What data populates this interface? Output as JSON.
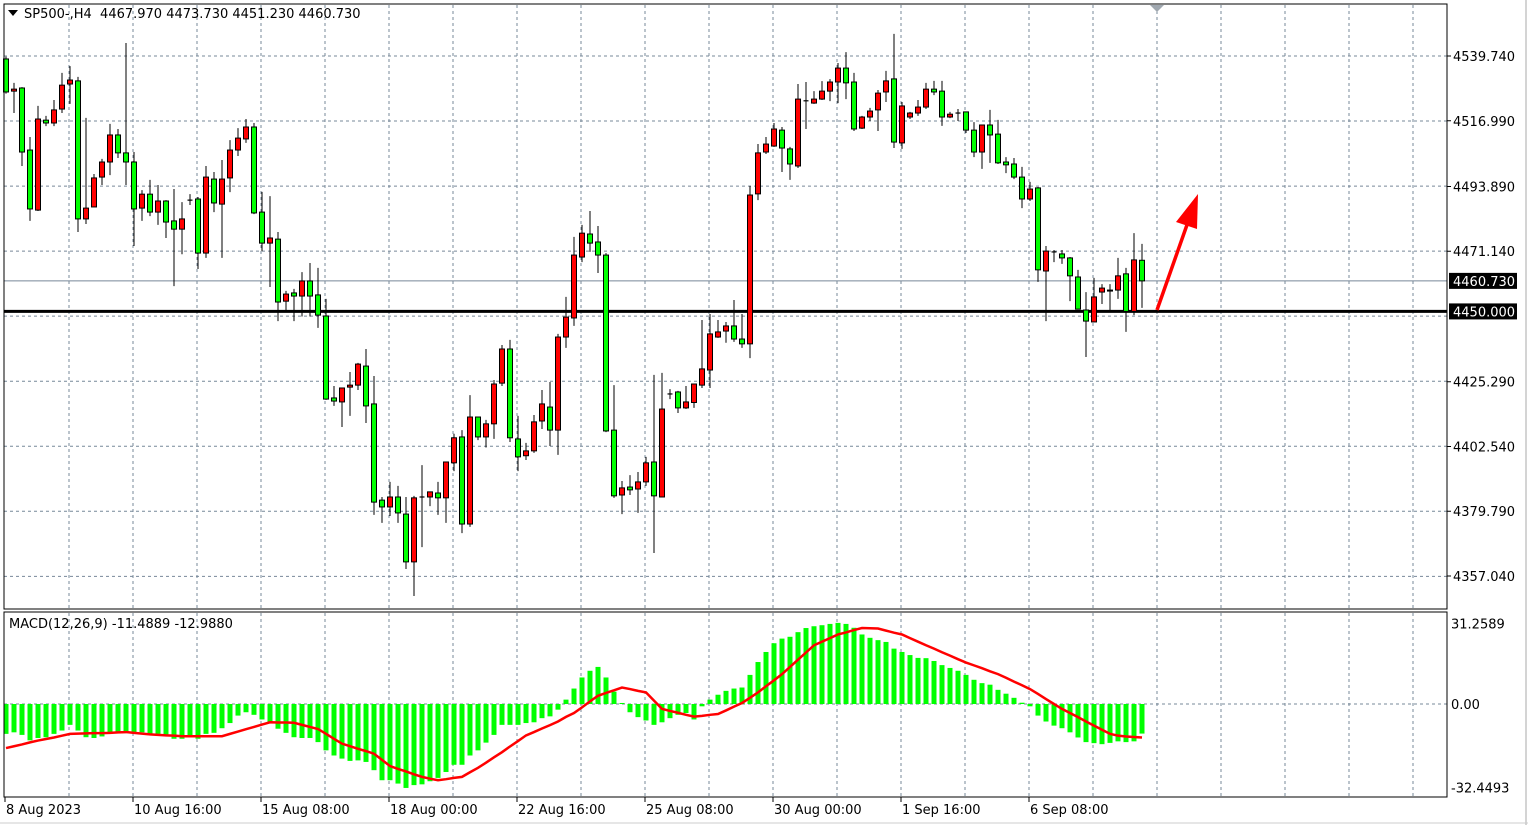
{
  "header": {
    "symbol": "SP500-,H4",
    "ohlc": "4467.970 4473.730 4451.230 4460.730"
  },
  "macd_label": {
    "name": "MACD(12,26,9)",
    "values": "-11.4889 -12.9880"
  },
  "colors": {
    "bull_body": "#ff0000",
    "bear_body": "#00ff00",
    "wick": "#000000",
    "grid": "#778899",
    "macd_hist": "#00ff00",
    "signal_line": "#ff0000",
    "arrow": "#ff0000",
    "level_line": "#000000",
    "bid_line": "#778899"
  },
  "chart_data": [
    {
      "type": "candlestick",
      "symbol": "SP500-",
      "timeframe": "H4",
      "bull_color": "red",
      "bear_color": "green",
      "grid": true,
      "ylim": [
        4345.5,
        4557.7
      ],
      "price_ticks": [
        "4539.740",
        "4516.990",
        "4493.890",
        "4471.140",
        "4425.290",
        "4402.540",
        "4379.790",
        "4357.040"
      ],
      "x_tick_labels": [
        "8 Aug 2023",
        "10 Aug 16:00",
        "15 Aug 08:00",
        "18 Aug 00:00",
        "22 Aug 16:00",
        "25 Aug 08:00",
        "30 Aug 00:00",
        "1 Sep 16:00",
        "6 Sep 08:00"
      ],
      "current_price": "4460.730",
      "horizontal_level": "4450.000",
      "annotation": "red-arrow-up",
      "ohlc": [
        [
          4538.7,
          4539.5,
          4526.5,
          4527.1
        ],
        [
          4527.4,
          4530.3,
          4519.7,
          4528.1
        ],
        [
          4528.5,
          4528.8,
          4501.1,
          4506.0
        ],
        [
          4506.7,
          4511.3,
          4481.8,
          4486.0
        ],
        [
          4485.6,
          4522.2,
          4485.3,
          4517.6
        ],
        [
          4517.2,
          4518.7,
          4515.1,
          4516.2
        ],
        [
          4516.2,
          4524.3,
          4515.1,
          4520.8
        ],
        [
          4521.1,
          4533.8,
          4519.7,
          4529.5
        ],
        [
          4529.9,
          4536.2,
          4522.9,
          4531.3
        ],
        [
          4531.0,
          4532.4,
          4477.9,
          4482.5
        ],
        [
          4482.5,
          4518.0,
          4480.7,
          4486.3
        ],
        [
          4486.7,
          4498.3,
          4486.7,
          4496.9
        ],
        [
          4497.2,
          4503.6,
          4494.4,
          4502.5
        ],
        [
          4502.5,
          4515.9,
          4497.9,
          4512.0
        ],
        [
          4512.0,
          4514.1,
          4503.9,
          4505.7
        ],
        [
          4505.7,
          4544.3,
          4494.4,
          4502.5
        ],
        [
          4502.5,
          4506.0,
          4473.0,
          4486.0
        ],
        [
          4486.3,
          4492.6,
          4481.8,
          4491.2
        ],
        [
          4491.2,
          4496.2,
          4483.5,
          4484.9
        ],
        [
          4484.9,
          4494.4,
          4480.4,
          4488.8
        ],
        [
          4488.8,
          4489.1,
          4475.8,
          4481.4
        ],
        [
          4481.8,
          4493.0,
          4458.9,
          4478.9
        ],
        [
          4478.9,
          4488.4,
          4470.1,
          4482.5
        ],
        [
          4489.1,
          4491.2,
          4487.4,
          4489.1
        ],
        [
          4489.5,
          4490.2,
          4464.9,
          4470.5
        ],
        [
          4470.5,
          4501.1,
          4468.8,
          4497.2
        ],
        [
          4496.5,
          4499.0,
          4484.9,
          4488.1
        ],
        [
          4487.7,
          4503.2,
          4468.8,
          4496.5
        ],
        [
          4496.9,
          4510.2,
          4491.9,
          4506.7
        ],
        [
          4506.7,
          4514.4,
          4504.6,
          4510.9
        ],
        [
          4510.6,
          4517.6,
          4509.2,
          4514.8
        ],
        [
          4514.8,
          4516.2,
          4484.2,
          4484.6
        ],
        [
          4484.9,
          4492.0,
          4471.2,
          4474.0
        ],
        [
          4474.0,
          4490.5,
          4458.6,
          4475.8
        ],
        [
          4475.4,
          4477.9,
          4446.6,
          4453.3
        ],
        [
          4453.6,
          4457.2,
          4450.5,
          4456.1
        ],
        [
          4456.5,
          4457.9,
          4446.6,
          4455.4
        ],
        [
          4455.4,
          4463.8,
          4448.2,
          4460.7
        ],
        [
          4460.7,
          4467.0,
          4448.2,
          4455.4
        ],
        [
          4455.8,
          4465.3,
          4444.2,
          4448.7
        ],
        [
          4448.4,
          4454.4,
          4418.9,
          4419.2
        ],
        [
          4419.6,
          4423.8,
          4416.8,
          4418.5
        ],
        [
          4418.2,
          4423.1,
          4409.4,
          4423.1
        ],
        [
          4423.4,
          4428.7,
          4413.3,
          4424.1
        ],
        [
          4424.1,
          4431.9,
          4422.4,
          4431.5
        ],
        [
          4430.8,
          4436.8,
          4410.8,
          4416.8
        ],
        [
          4417.5,
          4427.3,
          4378.5,
          4383.0
        ],
        [
          4383.7,
          4384.8,
          4375.7,
          4381.3
        ],
        [
          4381.3,
          4390.1,
          4378.1,
          4384.8
        ],
        [
          4384.8,
          4388.7,
          4375.7,
          4379.2
        ],
        [
          4378.8,
          4384.8,
          4359.5,
          4362.0
        ],
        [
          4362.0,
          4385.2,
          4350.0,
          4384.5
        ],
        [
          4384.8,
          4396.0,
          4367.2,
          4384.8
        ],
        [
          4384.8,
          4386.6,
          4381.6,
          4386.6
        ],
        [
          4386.2,
          4390.1,
          4378.5,
          4384.5
        ],
        [
          4384.5,
          4397.1,
          4375.7,
          4397.1
        ],
        [
          4396.8,
          4407.0,
          4393.9,
          4405.6
        ],
        [
          4405.9,
          4408.3,
          4372.1,
          4375.3
        ],
        [
          4375.3,
          4420.6,
          4374.3,
          4412.9
        ],
        [
          4412.9,
          4412.9,
          4404.8,
          4405.9
        ],
        [
          4405.9,
          4411.9,
          4402.2,
          4410.5
        ],
        [
          4410.5,
          4425.9,
          4405.2,
          4424.5
        ],
        [
          4424.8,
          4438.2,
          4423.8,
          4436.8
        ],
        [
          4436.8,
          4440.0,
          4404.1,
          4405.6
        ],
        [
          4405.2,
          4413.3,
          4393.9,
          4398.9
        ],
        [
          4399.3,
          4403.8,
          4397.8,
          4401.0
        ],
        [
          4401.0,
          4413.6,
          4400.3,
          4411.2
        ],
        [
          4411.5,
          4422.4,
          4408.7,
          4417.5
        ],
        [
          4416.4,
          4425.2,
          4402.7,
          4408.3
        ],
        [
          4408.3,
          4442.1,
          4399.6,
          4441.0
        ],
        [
          4441.0,
          4455.1,
          4437.2,
          4448.0
        ],
        [
          4447.7,
          4476.2,
          4444.9,
          4469.8
        ],
        [
          4469.1,
          4480.4,
          4467.3,
          4477.5
        ],
        [
          4477.2,
          4485.3,
          4470.9,
          4474.0
        ],
        [
          4474.4,
          4480.0,
          4463.5,
          4469.8
        ],
        [
          4469.8,
          4470.5,
          4407.6,
          4408.0
        ],
        [
          4408.3,
          4424.1,
          4384.5,
          4385.2
        ],
        [
          4385.5,
          4390.4,
          4378.8,
          4388.0
        ],
        [
          4388.3,
          4392.5,
          4385.5,
          4387.3
        ],
        [
          4387.6,
          4393.6,
          4379.2,
          4390.1
        ],
        [
          4390.1,
          4398.9,
          4388.7,
          4396.8
        ],
        [
          4397.1,
          4427.7,
          4365.1,
          4385.2
        ],
        [
          4384.8,
          4428.4,
          4384.8,
          4415.7
        ],
        [
          4421.0,
          4422.7,
          4419.2,
          4421.0
        ],
        [
          4421.7,
          4422.1,
          4414.3,
          4416.1
        ],
        [
          4416.1,
          4423.8,
          4415.7,
          4418.2
        ],
        [
          4418.0,
          4424.5,
          4416.1,
          4424.5
        ],
        [
          4424.1,
          4447.0,
          4423.1,
          4429.8
        ],
        [
          4429.4,
          4449.1,
          4423.1,
          4442.1
        ],
        [
          4441.0,
          4447.0,
          4440.7,
          4442.8
        ],
        [
          4443.1,
          4446.3,
          4439.0,
          4444.9
        ],
        [
          4444.9,
          4454.0,
          4439.3,
          4440.3
        ],
        [
          4440.3,
          4449.1,
          4437.2,
          4438.6
        ],
        [
          4438.6,
          4494.1,
          4433.6,
          4490.9
        ],
        [
          4491.3,
          4508.8,
          4489.1,
          4505.7
        ],
        [
          4506.0,
          4511.3,
          4505.3,
          4508.8
        ],
        [
          4508.1,
          4516.2,
          4507.8,
          4514.1
        ],
        [
          4513.7,
          4514.8,
          4499.0,
          4507.4
        ],
        [
          4507.1,
          4507.8,
          4496.2,
          4501.8
        ],
        [
          4501.1,
          4529.9,
          4500.4,
          4524.6
        ],
        [
          4524.0,
          4530.6,
          4514.1,
          4524.0
        ],
        [
          4523.2,
          4527.4,
          4522.9,
          4524.6
        ],
        [
          4524.6,
          4530.9,
          4524.3,
          4527.4
        ],
        [
          4527.4,
          4531.6,
          4523.9,
          4530.6
        ],
        [
          4530.6,
          4537.3,
          4523.2,
          4535.5
        ],
        [
          4535.5,
          4541.1,
          4524.6,
          4530.3
        ],
        [
          4530.6,
          4533.8,
          4513.4,
          4514.1
        ],
        [
          4514.4,
          4518.7,
          4514.1,
          4518.3
        ],
        [
          4518.3,
          4521.5,
          4516.9,
          4520.4
        ],
        [
          4520.8,
          4527.8,
          4513.4,
          4526.7
        ],
        [
          4527.1,
          4534.5,
          4523.6,
          4531.0
        ],
        [
          4531.7,
          4547.5,
          4507.4,
          4509.5
        ],
        [
          4509.2,
          4523.6,
          4507.1,
          4522.2
        ],
        [
          4518.3,
          4520.1,
          4517.6,
          4519.7
        ],
        [
          4519.7,
          4524.3,
          4518.7,
          4521.8
        ],
        [
          4521.8,
          4530.3,
          4521.1,
          4528.1
        ],
        [
          4528.1,
          4531.0,
          4526.0,
          4527.1
        ],
        [
          4527.4,
          4531.0,
          4515.2,
          4518.3
        ],
        [
          4518.3,
          4520.1,
          4517.9,
          4519.3
        ],
        [
          4519.7,
          4521.1,
          4516.9,
          4519.7
        ],
        [
          4520.1,
          4520.1,
          4512.7,
          4513.7
        ],
        [
          4513.7,
          4516.5,
          4504.2,
          4506.0
        ],
        [
          4506.0,
          4515.5,
          4500.1,
          4515.5
        ],
        [
          4515.5,
          4520.8,
          4502.2,
          4512.0
        ],
        [
          4512.3,
          4517.3,
          4501.8,
          4502.2
        ],
        [
          4502.5,
          4504.2,
          4498.6,
          4501.5
        ],
        [
          4501.8,
          4503.9,
          4496.5,
          4497.2
        ],
        [
          4497.2,
          4500.8,
          4486.3,
          4489.5
        ],
        [
          4489.5,
          4495.5,
          4488.8,
          4493.0
        ],
        [
          4493.4,
          4493.7,
          4460.4,
          4464.6
        ],
        [
          4464.2,
          4473.0,
          4446.6,
          4471.2
        ],
        [
          4470.9,
          4471.6,
          4467.3,
          4470.9
        ],
        [
          4470.2,
          4471.6,
          4466.7,
          4468.8
        ],
        [
          4468.8,
          4469.1,
          4453.6,
          4462.5
        ],
        [
          4462.1,
          4464.6,
          4450.8,
          4450.8
        ],
        [
          4450.5,
          4456.8,
          4434.0,
          4446.6
        ],
        [
          4446.3,
          4461.8,
          4446.3,
          4455.1
        ],
        [
          4456.8,
          4459.6,
          4452.6,
          4458.2
        ],
        [
          4457.2,
          4459.6,
          4450.5,
          4457.5
        ],
        [
          4457.5,
          4468.8,
          4454.4,
          4462.5
        ],
        [
          4463.2,
          4465.3,
          4442.8,
          4450.0
        ],
        [
          4450.0,
          4477.5,
          4448.7,
          4468.1
        ],
        [
          4467.97,
          4473.73,
          4451.23,
          4460.73
        ]
      ]
    },
    {
      "type": "bar+line",
      "indicator": "MACD(12,26,9)",
      "ylim": [
        -32.4493,
        31.2589
      ],
      "y_tick_labels": [
        "31.2589",
        "0.00",
        "-32.4493"
      ],
      "histogram": [
        -11.6,
        -11.0,
        -12.0,
        -14.1,
        -13.2,
        -12.9,
        -11.6,
        -10.3,
        -8.1,
        -10.3,
        -12.9,
        -13.2,
        -12.6,
        -11.2,
        -11.0,
        -11.0,
        -11.0,
        -11.0,
        -11.6,
        -11.6,
        -12.0,
        -13.5,
        -13.5,
        -12.2,
        -13.5,
        -11.6,
        -11.2,
        -9.4,
        -7.4,
        -4.5,
        -3.2,
        -4.2,
        -6.0,
        -7.1,
        -9.6,
        -11.2,
        -12.9,
        -13.2,
        -13.2,
        -14.8,
        -18.0,
        -20.0,
        -21.2,
        -22.1,
        -21.9,
        -22.5,
        -25.7,
        -29.6,
        -29.6,
        -30.9,
        -32.6,
        -31.5,
        -31.2,
        -30.0,
        -28.7,
        -26.4,
        -23.6,
        -23.6,
        -20.0,
        -18.0,
        -15.0,
        -12.0,
        -8.1,
        -8.1,
        -8.1,
        -7.4,
        -7.1,
        -5.5,
        -4.8,
        -2.2,
        1.7,
        6.0,
        10.3,
        12.9,
        14.4,
        10.3,
        4.8,
        0.4,
        -3.2,
        -5.1,
        -6.4,
        -8.1,
        -7.1,
        -5.5,
        -4.2,
        -3.5,
        -6.0,
        -0.9,
        1.7,
        3.6,
        5.1,
        6.0,
        6.4,
        11.3,
        16.3,
        20.2,
        23.6,
        25.4,
        26.1,
        27.9,
        29.5,
        30.2,
        30.6,
        31.1,
        31.5,
        31.1,
        29.6,
        27.0,
        25.7,
        24.8,
        24.1,
        21.5,
        20.2,
        19.0,
        17.9,
        17.8,
        16.7,
        15.1,
        14.0,
        12.9,
        11.3,
        9.4,
        8.1,
        7.5,
        5.5,
        4.0,
        2.4,
        0.5,
        -0.9,
        -4.5,
        -6.8,
        -8.4,
        -9.4,
        -11.0,
        -13.0,
        -14.8,
        -15.2,
        -15.6,
        -15.1,
        -14.5,
        -14.8,
        -14.5,
        -11.4889
      ],
      "signal": [
        -17.1,
        -16.4,
        -15.7,
        -14.9,
        -14.2,
        -13.6,
        -13.0,
        -12.3,
        -11.6,
        -11.5,
        -11.4,
        -11.3,
        -11.3,
        -11.2,
        -11.0,
        -10.9,
        -11.2,
        -11.5,
        -11.8,
        -12.0,
        -12.2,
        -12.3,
        -12.5,
        -12.5,
        -12.5,
        -12.5,
        -12.5,
        -12.5,
        -11.6,
        -10.7,
        -9.8,
        -8.9,
        -8.0,
        -7.1,
        -7.2,
        -7.2,
        -7.3,
        -8.1,
        -8.9,
        -9.7,
        -11.6,
        -13.5,
        -15.4,
        -16.4,
        -17.4,
        -18.3,
        -19.3,
        -21.7,
        -24.1,
        -25.2,
        -26.2,
        -27.3,
        -28.3,
        -29.0,
        -29.6,
        -29.2,
        -28.7,
        -28.3,
        -26.5,
        -24.8,
        -22.8,
        -20.7,
        -18.7,
        -16.5,
        -14.4,
        -12.2,
        -10.9,
        -9.5,
        -8.2,
        -6.8,
        -5.0,
        -3.5,
        -1.3,
        1.0,
        3.2,
        4.3,
        5.3,
        6.4,
        5.8,
        5.1,
        4.5,
        1.3,
        -1.9,
        -2.7,
        -3.4,
        -4.2,
        -4.9,
        -4.6,
        -4.2,
        -3.9,
        -2.5,
        -1.0,
        0.4,
        2.4,
        4.5,
        6.9,
        9.2,
        11.6,
        14.4,
        17.2,
        20.0,
        22.8,
        24.2,
        25.6,
        27.0,
        27.8,
        28.7,
        29.5,
        29.4,
        29.3,
        28.5,
        27.7,
        27.0,
        25.6,
        24.2,
        22.8,
        21.5,
        20.1,
        18.8,
        17.4,
        16.1,
        15.0,
        13.9,
        12.7,
        11.6,
        10.2,
        8.7,
        7.3,
        5.8,
        3.9,
        1.9,
        0.0,
        -1.9,
        -3.5,
        -5.1,
        -6.8,
        -8.4,
        -10.0,
        -11.6,
        -12.3,
        -12.6,
        -12.8,
        -12.988
      ]
    }
  ]
}
